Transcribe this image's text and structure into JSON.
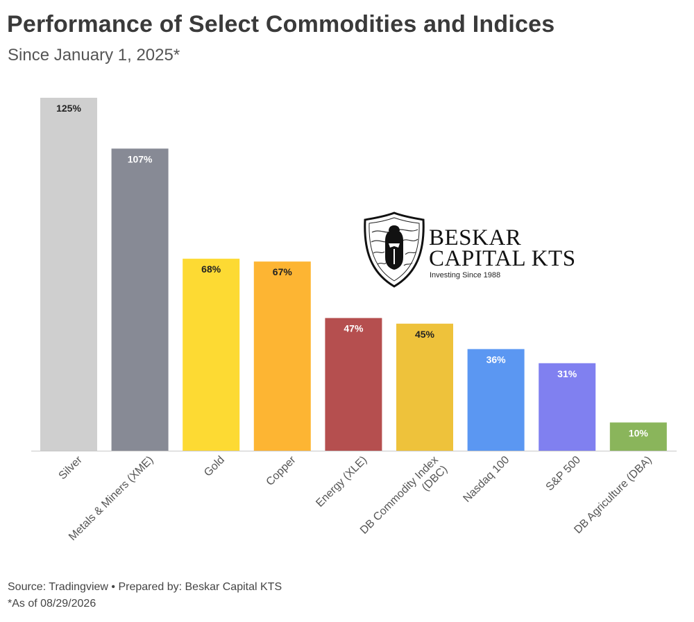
{
  "header": {
    "title": "Performance of Select Commodities and Indices",
    "subtitle": "Since January 1, 2025*"
  },
  "logo": {
    "line1": "BESKAR",
    "line2": "CAPITAL KTS",
    "tagline": "Investing Since 1988"
  },
  "footer": {
    "source": "Source: Tradingview • Prepared by: Beskar Capital KTS",
    "as_of": "*As of 08/29/2026"
  },
  "chart_data": {
    "type": "bar",
    "title": "Performance of Select Commodities and Indices",
    "subtitle": "Since January 1, 2025*",
    "xlabel": "",
    "ylabel": "",
    "ylim": [
      0,
      125
    ],
    "grid": false,
    "categories": [
      "Silver",
      "Metals & Miners (XME)",
      "Gold",
      "Copper",
      "Energy (XLE)",
      "DB Commodity Index (DBC)",
      "Nasdaq 100",
      "S&P 500",
      "DB Agriculture (DBA)"
    ],
    "values": [
      125,
      107,
      68,
      67,
      47,
      45,
      36,
      31,
      10
    ],
    "data_labels": [
      "125%",
      "107%",
      "68%",
      "67%",
      "47%",
      "45%",
      "36%",
      "31%",
      "10%"
    ],
    "colors": [
      "#cfcfcf",
      "#878a95",
      "#fdda33",
      "#fdb533",
      "#b54f4f",
      "#eec23b",
      "#5b97f2",
      "#8080f0",
      "#8ab55b"
    ],
    "label_colors": [
      "#222222",
      "#ffffff",
      "#222222",
      "#222222",
      "#ffffff",
      "#222222",
      "#ffffff",
      "#ffffff",
      "#ffffff"
    ]
  }
}
